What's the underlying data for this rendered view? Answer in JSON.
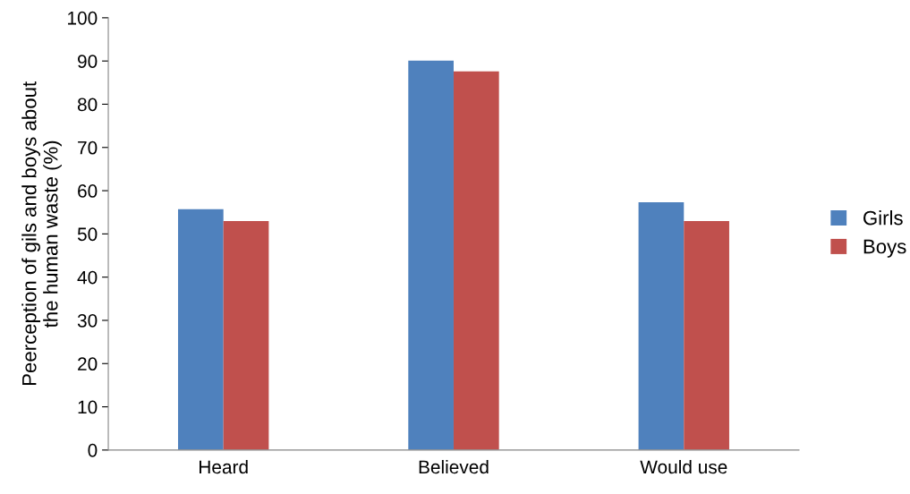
{
  "chart_data": {
    "type": "bar",
    "ylabel": "Peerception of gils and boys about\nthe human waste (%)",
    "categories": [
      "Heard",
      "Believed",
      "Would use"
    ],
    "series": [
      {
        "name": "Girls",
        "color": "#4f81bd",
        "values": [
          55.7,
          90.1,
          57.3
        ]
      },
      {
        "name": "Boys",
        "color": "#c0504d",
        "values": [
          53.0,
          87.6,
          53.0
        ]
      }
    ],
    "ylim": [
      0,
      100
    ],
    "yticks": [
      0,
      10,
      20,
      30,
      40,
      50,
      60,
      70,
      80,
      90,
      100
    ],
    "grid": false,
    "legend": "right"
  }
}
